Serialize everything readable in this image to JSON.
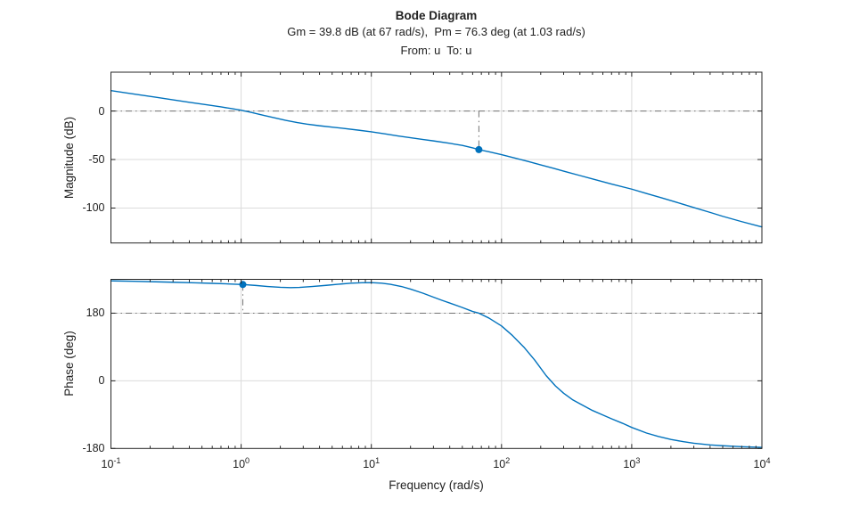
{
  "title": "Bode Diagram",
  "subtitle": "Gm = 39.8 dB (at 67 rad/s),  Pm = 76.3 deg (at 1.03 rad/s)",
  "io_label": "From: u  To: u",
  "xaxis": {
    "label": "Frequency (rad/s)",
    "tick_base": "10",
    "tick_exponents": [
      "-1",
      "0",
      "1",
      "2",
      "3",
      "4"
    ]
  },
  "colors": {
    "curve": "#0072BD",
    "marker": "#0072BD",
    "reference_line": "#737373",
    "grid": "#DBDBDB",
    "axis": "#252525"
  },
  "chart_data": [
    {
      "type": "line",
      "subplot": "magnitude",
      "ylabel": "Magnitude (dB)",
      "xscale": "log",
      "xlim": [
        0.1,
        10000
      ],
      "ylim": [
        -136,
        40
      ],
      "yticks": [
        {
          "value": 0,
          "label": "0"
        },
        {
          "value": -50,
          "label": "-50"
        },
        {
          "value": -100,
          "label": "-100"
        }
      ],
      "reference_line_value": 0,
      "margin_marker": {
        "freq": 67,
        "value": -39.8,
        "line_from": 0,
        "line_to": -39.8
      },
      "points": [
        [
          0.1,
          21
        ],
        [
          0.13,
          18.7
        ],
        [
          0.17,
          16.4
        ],
        [
          0.22,
          14.2
        ],
        [
          0.3,
          11.5
        ],
        [
          0.4,
          9.0
        ],
        [
          0.55,
          6.3
        ],
        [
          0.7,
          4.2
        ],
        [
          0.85,
          2.4
        ],
        [
          1.0,
          0.8
        ],
        [
          1.2,
          -1.5
        ],
        [
          1.5,
          -4.6
        ],
        [
          1.8,
          -7.0
        ],
        [
          2.2,
          -9.6
        ],
        [
          2.7,
          -11.9
        ],
        [
          3.2,
          -13.5
        ],
        [
          4,
          -15.2
        ],
        [
          5,
          -16.6
        ],
        [
          6,
          -17.8
        ],
        [
          8,
          -19.8
        ],
        [
          10,
          -21.5
        ],
        [
          13,
          -23.8
        ],
        [
          16,
          -25.7
        ],
        [
          20,
          -27.5
        ],
        [
          25,
          -29.4
        ],
        [
          30,
          -30.8
        ],
        [
          40,
          -33.3
        ],
        [
          50,
          -35.5
        ],
        [
          60,
          -38.0
        ],
        [
          67,
          -39.8
        ],
        [
          80,
          -42.0
        ],
        [
          100,
          -45.0
        ],
        [
          130,
          -48.9
        ],
        [
          160,
          -52.0
        ],
        [
          200,
          -55.5
        ],
        [
          250,
          -59.0
        ],
        [
          300,
          -62.0
        ],
        [
          400,
          -66.5
        ],
        [
          500,
          -70.0
        ],
        [
          700,
          -75.3
        ],
        [
          1000,
          -80.5
        ],
        [
          1300,
          -85.0
        ],
        [
          1700,
          -89.5
        ],
        [
          2200,
          -94.0
        ],
        [
          3000,
          -99.5
        ],
        [
          4000,
          -104.5
        ],
        [
          5000,
          -108.5
        ],
        [
          7000,
          -114.0
        ],
        [
          10000,
          -119.5
        ]
      ]
    },
    {
      "type": "line",
      "subplot": "phase",
      "ylabel": "Phase (deg)",
      "xscale": "log",
      "xlim": [
        0.1,
        10000
      ],
      "ylim": [
        -180,
        270
      ],
      "yticks": [
        {
          "value": 180,
          "label": "180"
        },
        {
          "value": 0,
          "label": "0"
        },
        {
          "value": -180,
          "label": "-180"
        }
      ],
      "reference_line_value": 180,
      "margin_marker": {
        "freq": 1.03,
        "value": 256.3,
        "line_from": 256.3,
        "line_to": 180
      },
      "points": [
        [
          0.1,
          266
        ],
        [
          0.15,
          264.8
        ],
        [
          0.22,
          263.5
        ],
        [
          0.3,
          262.3
        ],
        [
          0.45,
          260.7
        ],
        [
          0.6,
          259.3
        ],
        [
          0.8,
          257.8
        ],
        [
          1.03,
          256.3
        ],
        [
          1.3,
          253.7
        ],
        [
          1.6,
          251.0
        ],
        [
          2.0,
          248.8
        ],
        [
          2.4,
          248.0
        ],
        [
          2.8,
          248.6
        ],
        [
          3.5,
          250.8
        ],
        [
          4.5,
          254.0
        ],
        [
          5.5,
          256.8
        ],
        [
          7,
          259.8
        ],
        [
          8.5,
          261.0
        ],
        [
          10,
          261.3
        ],
        [
          12,
          259.8
        ],
        [
          14,
          256.8
        ],
        [
          17,
          251.0
        ],
        [
          20,
          244.0
        ],
        [
          25,
          233.0
        ],
        [
          30,
          222.5
        ],
        [
          35,
          214.0
        ],
        [
          40,
          207.0
        ],
        [
          50,
          195.0
        ],
        [
          60,
          184.5
        ],
        [
          67,
          180.0
        ],
        [
          80,
          167.0
        ],
        [
          100,
          146.0
        ],
        [
          120,
          122.0
        ],
        [
          150,
          88.0
        ],
        [
          180,
          55.0
        ],
        [
          220,
          14.0
        ],
        [
          260,
          -14.0
        ],
        [
          300,
          -33.0
        ],
        [
          350,
          -50.0
        ],
        [
          400,
          -61.0
        ],
        [
          500,
          -79.0
        ],
        [
          600,
          -91.0
        ],
        [
          700,
          -101.0
        ],
        [
          850,
          -113.0
        ],
        [
          1000,
          -124.0
        ],
        [
          1300,
          -139.0
        ],
        [
          1600,
          -148.0
        ],
        [
          2000,
          -156.0
        ],
        [
          2500,
          -162.0
        ],
        [
          3000,
          -166.0
        ],
        [
          4000,
          -170.5
        ],
        [
          5000,
          -172.8
        ],
        [
          7000,
          -175.2
        ],
        [
          10000,
          -177.0
        ]
      ]
    }
  ]
}
